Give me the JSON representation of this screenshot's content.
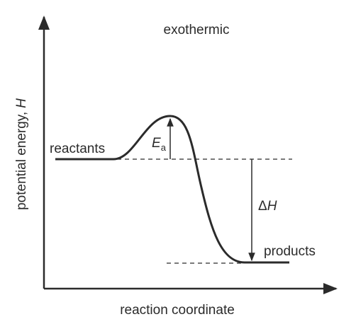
{
  "title": "exothermic",
  "y_axis_label": {
    "text": "potential energy,",
    "symbol": "H"
  },
  "x_axis_label": "reaction coordinate",
  "reactants_label": "reactants",
  "products_label": "products",
  "activation_energy_label": {
    "symbol": "E",
    "subscript": "a"
  },
  "enthalpy_change_label": {
    "prefix": "Δ",
    "symbol": "H"
  }
}
